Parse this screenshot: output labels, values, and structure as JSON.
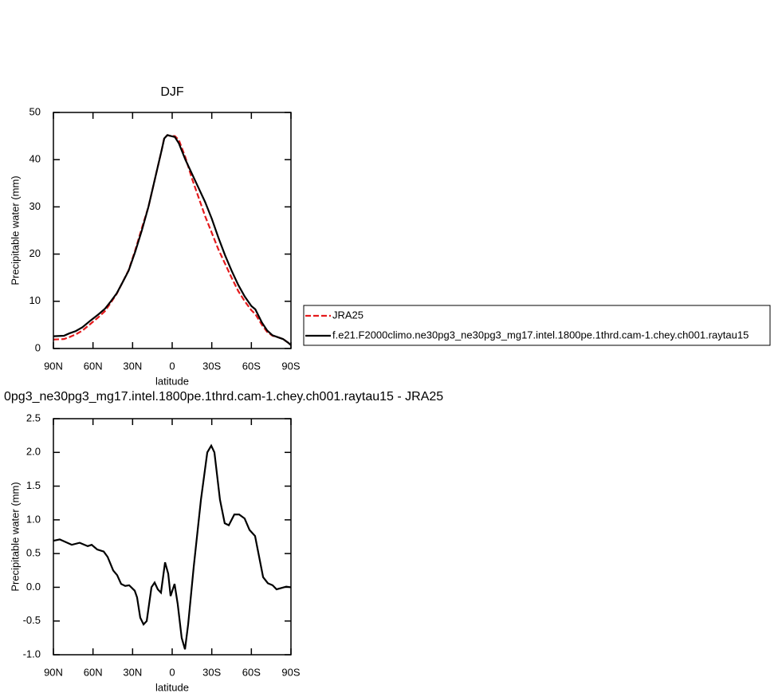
{
  "chart_data": [
    {
      "type": "line",
      "title": "DJF",
      "xlabel": "latitude",
      "ylabel": "Precipitable water (mm)",
      "xlim": [
        90,
        -90
      ],
      "xticks": [
        {
          "value": 90,
          "label": "90N"
        },
        {
          "value": 60,
          "label": "60N"
        },
        {
          "value": 30,
          "label": "30N"
        },
        0,
        {
          "value": -30,
          "label": "30S"
        },
        {
          "value": -60,
          "label": "60S"
        },
        {
          "value": -90,
          "label": "90S"
        }
      ],
      "ylim": [
        0,
        50
      ],
      "yticks": [
        0,
        10,
        20,
        30,
        40,
        50
      ],
      "x": [
        90,
        82,
        78,
        73,
        68,
        62,
        56,
        51,
        47,
        42,
        38,
        33,
        28,
        23,
        18,
        13,
        8,
        6,
        3.6,
        1,
        -2,
        -5,
        -10,
        -15,
        -20,
        -25,
        -30,
        -35,
        -40,
        -45,
        -50,
        -55,
        -60,
        -63,
        -68,
        -72,
        -76,
        -80,
        -84,
        -88,
        -90
      ],
      "series": [
        {
          "name": "JRA25",
          "color": "#e41a1c",
          "dash": true,
          "values": [
            1.9,
            2.0,
            2.4,
            3.0,
            3.8,
            5.2,
            6.6,
            7.9,
            9.5,
            11.6,
            13.8,
            16.6,
            20.8,
            25.5,
            30,
            36,
            42,
            44.6,
            45.2,
            45,
            45,
            44.2,
            40.5,
            36,
            32,
            28,
            24.5,
            21,
            18,
            15,
            12.2,
            10,
            8.1,
            7.3,
            5.0,
            3.5,
            2.7,
            2.4,
            2.0,
            1.2,
            0.7
          ]
        },
        {
          "name": "f.e21.F2000climo.ne30pg3_ne30pg3_mg17.intel.1800pe.1thrd.cam-1.chey.ch001.raytau15",
          "color": "#000000",
          "dash": false,
          "values": [
            2.6,
            2.7,
            3.2,
            3.7,
            4.5,
            5.9,
            7.2,
            8.4,
            9.8,
            11.7,
            13.8,
            16.5,
            20.5,
            25,
            30,
            36,
            42,
            44.5,
            45.2,
            45,
            44.8,
            43.5,
            40,
            37,
            34,
            31,
            27.5,
            23.5,
            19.8,
            16.5,
            13.5,
            11,
            9,
            8.3,
            5.5,
            3.8,
            2.8,
            2.4,
            2.0,
            1.2,
            0.7
          ]
        }
      ]
    },
    {
      "type": "line",
      "title": "0pg3_ne30pg3_mg17.intel.1800pe.1thrd.cam-1.chey.ch001.raytau15 - JRA25",
      "xlabel": "latitude",
      "ylabel": "Precipitable water (mm)",
      "xlim": [
        90,
        -90
      ],
      "xticks": [
        {
          "value": 90,
          "label": "90N"
        },
        {
          "value": 60,
          "label": "60N"
        },
        {
          "value": 30,
          "label": "30N"
        },
        0,
        {
          "value": -30,
          "label": "30S"
        },
        {
          "value": -60,
          "label": "60S"
        },
        {
          "value": -90,
          "label": "90S"
        }
      ],
      "ylim": [
        -1,
        2.5
      ],
      "yticks": [
        {
          "value": -1,
          "label": "-1.0"
        },
        -0.5,
        {
          "value": 0,
          "label": "0.0"
        },
        0.5,
        {
          "value": 1,
          "label": "1.0"
        },
        1.5,
        {
          "value": 2,
          "label": "2.0"
        },
        2.5
      ],
      "x": [
        90,
        85.2,
        76.1,
        70.1,
        64.0,
        61.0,
        56.8,
        51.9,
        48.9,
        44.7,
        41.7,
        38.7,
        35.6,
        32.6,
        28.4,
        26.6,
        24.2,
        21.7,
        19.3,
        15.7,
        13.3,
        10.9,
        8.5,
        5.4,
        3.0,
        1.2,
        -1.8,
        -4.2,
        -7.2,
        -9.7,
        -12.1,
        -16.3,
        -21.8,
        -26.6,
        -29.6,
        -32.0,
        -36.2,
        -39.8,
        -42.9,
        -47.1,
        -50.7,
        -54.9,
        -58.6,
        -62.8,
        -68.9,
        -72.5,
        -76.1,
        -79.1,
        -82.8,
        -86.4,
        -90
      ],
      "series": [
        {
          "color": "#000000",
          "dash": false,
          "values": [
            0.69,
            0.71,
            0.63,
            0.66,
            0.61,
            0.63,
            0.56,
            0.53,
            0.45,
            0.25,
            0.18,
            0.05,
            0.02,
            0.03,
            -0.05,
            -0.15,
            -0.45,
            -0.55,
            -0.5,
            0,
            0.07,
            -0.03,
            -0.08,
            0.37,
            0.2,
            -0.13,
            0.05,
            -0.25,
            -0.75,
            -0.92,
            -0.55,
            0.3,
            1.3,
            2.0,
            2.1,
            2.0,
            1.3,
            0.95,
            0.92,
            1.08,
            1.08,
            1.02,
            0.85,
            0.76,
            0.15,
            0.06,
            0.03,
            -0.03,
            -0.01,
            0.01,
            0
          ]
        }
      ]
    }
  ]
}
